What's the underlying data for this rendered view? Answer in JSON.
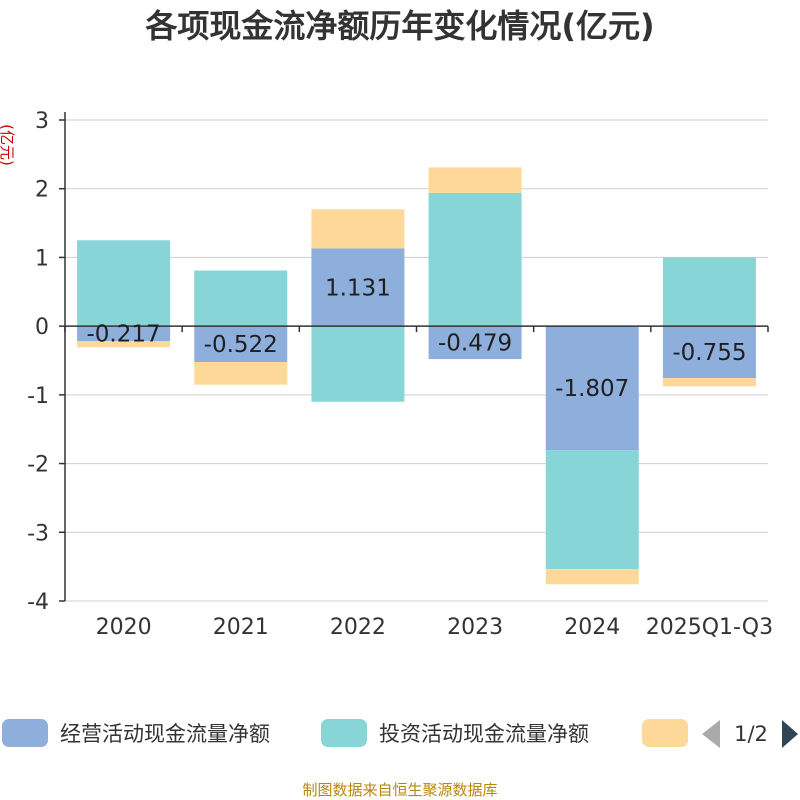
{
  "chart_data": {
    "type": "bar",
    "stacked": true,
    "title": "各项现金流净额历年变化情况(亿元)",
    "ylabel": "(亿元)",
    "xlabel": "",
    "categories": [
      "2020",
      "2021",
      "2022",
      "2023",
      "2024",
      "2025Q1-Q3"
    ],
    "ylim": [
      -4,
      3
    ],
    "yticks": [
      3,
      2,
      1,
      0,
      -1,
      -2,
      -3,
      -4
    ],
    "grid": true,
    "series": [
      {
        "name": "经营活动现金流量净额",
        "color": "#8eaedc",
        "values": [
          -0.217,
          -0.522,
          1.131,
          -0.479,
          -1.807,
          -0.755
        ],
        "labels": [
          "-0.217",
          "-0.522",
          "1.131",
          "-0.479",
          "-1.807",
          "-0.755"
        ]
      },
      {
        "name": "投资活动现金流量净额",
        "color": "#88d5d8",
        "values": [
          1.25,
          0.81,
          -1.1,
          1.94,
          -1.73,
          1.0
        ]
      },
      {
        "name": "",
        "color": "#fdd898",
        "values": [
          -0.09,
          -0.33,
          0.57,
          0.37,
          -0.22,
          -0.12
        ]
      }
    ]
  },
  "legend": {
    "page": "1/2",
    "prev_icon": "triangle-left-icon",
    "next_icon": "triangle-right-icon"
  },
  "source": "制图数据来自恒生聚源数据库"
}
